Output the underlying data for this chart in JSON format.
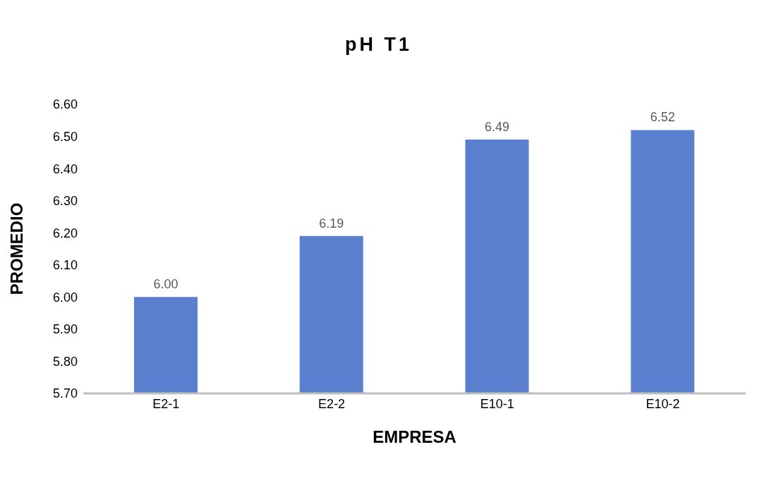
{
  "chart_data": {
    "type": "bar",
    "title": "pH T1",
    "xlabel": "EMPRESA",
    "ylabel": "PROMEDIO",
    "categories": [
      "E2-1",
      "E2-2",
      "E10-1",
      "E10-2"
    ],
    "values": [
      6.0,
      6.19,
      6.49,
      6.52
    ],
    "value_labels": [
      "6.00",
      "6.19",
      "6.49",
      "6.52"
    ],
    "color": "#5a7fcf",
    "ylim": [
      5.7,
      6.6
    ],
    "yticks": [
      {
        "value": 5.7,
        "label": "5.70"
      },
      {
        "value": 5.8,
        "label": "5.80"
      },
      {
        "value": 5.9,
        "label": "5.90"
      },
      {
        "value": 6.0,
        "label": "6.00"
      },
      {
        "value": 6.1,
        "label": "6.10"
      },
      {
        "value": 6.2,
        "label": "6.20"
      },
      {
        "value": 6.3,
        "label": "6.30"
      },
      {
        "value": 6.4,
        "label": "6.40"
      },
      {
        "value": 6.5,
        "label": "6.50"
      },
      {
        "value": 6.6,
        "label": "6.60"
      }
    ],
    "grid": false,
    "legend": false
  }
}
